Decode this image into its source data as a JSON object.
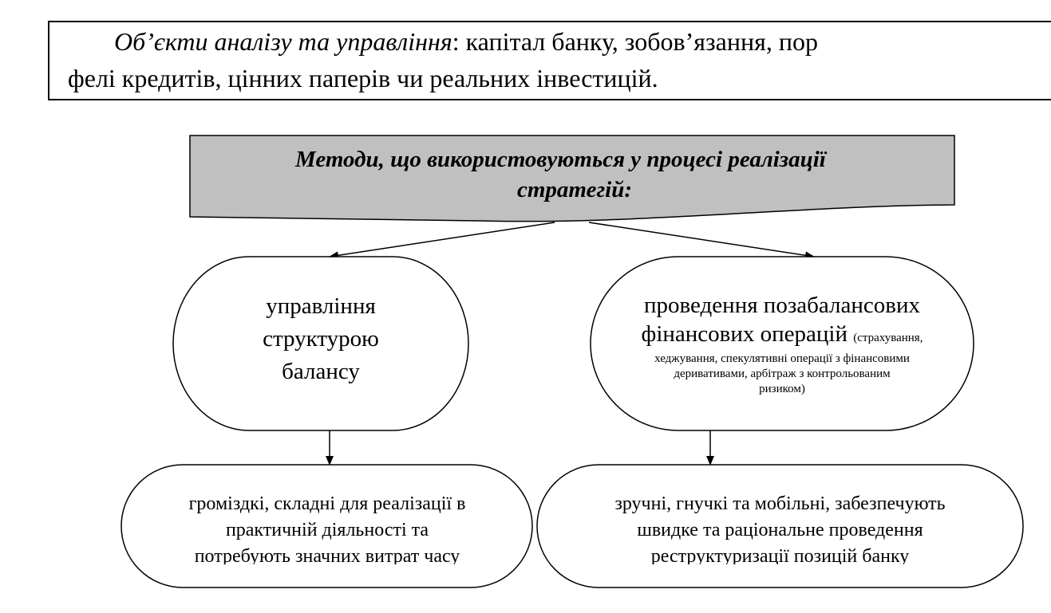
{
  "objects_box": {
    "label_italic": "Об’єкти аналізу та управління",
    "text_line1": ": капітал банку, зобов’язання, пор",
    "text_line2": "фелі кредитів, цінних паперів чи реальних інвестицій."
  },
  "diagram": {
    "header": {
      "line1": "Методи, що використовуються у процесі реалізації",
      "line2": "стратегій:",
      "fill": "#c0c0c0"
    },
    "left_method": {
      "lines": [
        "управління",
        "структурою",
        "балансу"
      ]
    },
    "right_method": {
      "line1": "проведення позабалансових",
      "line2": "фінансових операцій",
      "note_start": "(страхування,",
      "note_lines": [
        "хеджування, спекулятивні операції з фінансовими",
        "деривативами, арбітраж з контрольованим",
        "ризиком)"
      ]
    },
    "left_result": {
      "lines": [
        "громіздкі, складні для реалізації в",
        "практичній діяльності та",
        "потребують значних витрат часу"
      ]
    },
    "right_result": {
      "lines": [
        "зручні, гнучкі та мобільні, забезпечують",
        "швидке та раціональне проведення",
        "реструктуризації позицій банку"
      ]
    }
  }
}
